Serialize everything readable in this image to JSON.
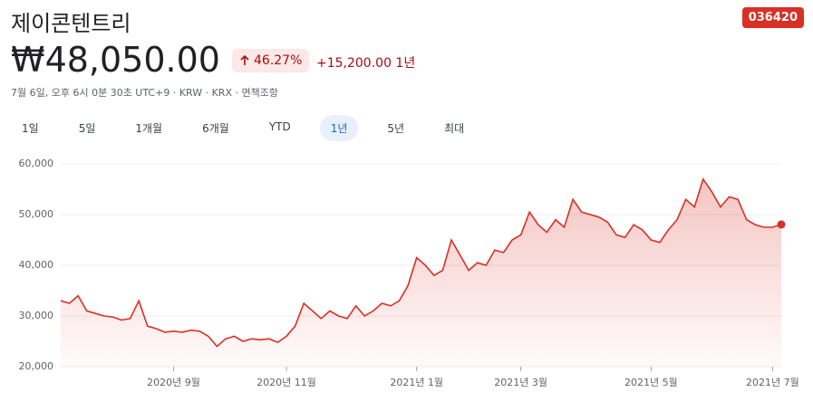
{
  "header": {
    "title": "제이콘텐트리",
    "ticker": "036420",
    "price": "₩48,050.00",
    "change_percent": "46.27%",
    "change_amount": "+15,200.00 1년",
    "info": "7월 6일, 오후 6시 0분 30초 UTC+9 · KRW · KRX · 면책조항"
  },
  "range_buttons": [
    "1일",
    "5일",
    "1개월",
    "6개월",
    "YTD",
    "1년",
    "5년",
    "최대"
  ],
  "chart_data": {
    "type": "line",
    "categories": [
      null,
      null,
      null,
      null,
      null,
      null,
      null,
      null,
      null,
      null,
      null,
      null,
      null,
      "2020년 9월",
      null,
      null,
      null,
      null,
      null,
      null,
      null,
      null,
      null,
      null,
      null,
      null,
      "2020년 11월",
      null,
      null,
      null,
      null,
      null,
      null,
      null,
      null,
      null,
      null,
      null,
      null,
      null,
      null,
      "2021년 1월",
      null,
      null,
      null,
      null,
      null,
      null,
      null,
      null,
      null,
      null,
      null,
      "2021년 3월",
      null,
      null,
      null,
      null,
      null,
      null,
      null,
      null,
      null,
      null,
      null,
      null,
      null,
      null,
      "2021년 5월",
      null,
      null,
      null,
      null,
      null,
      null,
      null,
      null,
      null,
      null,
      null,
      null,
      null,
      "2021년 7월",
      null
    ],
    "series": [
      {
        "name": "제이콘텐트리",
        "color": "#d93025",
        "values": [
          33000,
          32500,
          34000,
          31000,
          30500,
          30000,
          29800,
          29200,
          29500,
          33000,
          28000,
          27500,
          26800,
          27000,
          26800,
          27200,
          27000,
          26000,
          24000,
          25500,
          26000,
          25000,
          25500,
          25300,
          25500,
          24800,
          26000,
          28000,
          32500,
          31000,
          29500,
          31000,
          30000,
          29500,
          32000,
          30000,
          31000,
          32500,
          32000,
          33000,
          36000,
          41500,
          40000,
          38000,
          39000,
          45000,
          42000,
          39000,
          40500,
          40000,
          43000,
          42500,
          45000,
          46000,
          50500,
          48000,
          46500,
          49000,
          47500,
          53000,
          50500,
          50000,
          49500,
          48500,
          46000,
          45500,
          48000,
          47000,
          45000,
          44500,
          47000,
          49000,
          53000,
          51500,
          57000,
          54500,
          51500,
          53500,
          53000,
          49000,
          48000,
          47500,
          47500,
          48050
        ]
      }
    ],
    "ylim": [
      20000,
      60000
    ],
    "yticks": [
      {
        "value": 20000,
        "label": "20,000"
      },
      {
        "value": 30000,
        "label": "30,000"
      },
      {
        "value": 40000,
        "label": "40,000"
      },
      {
        "value": 50000,
        "label": "50,000"
      },
      {
        "value": 60000,
        "label": "60,000"
      }
    ],
    "grid": true
  }
}
